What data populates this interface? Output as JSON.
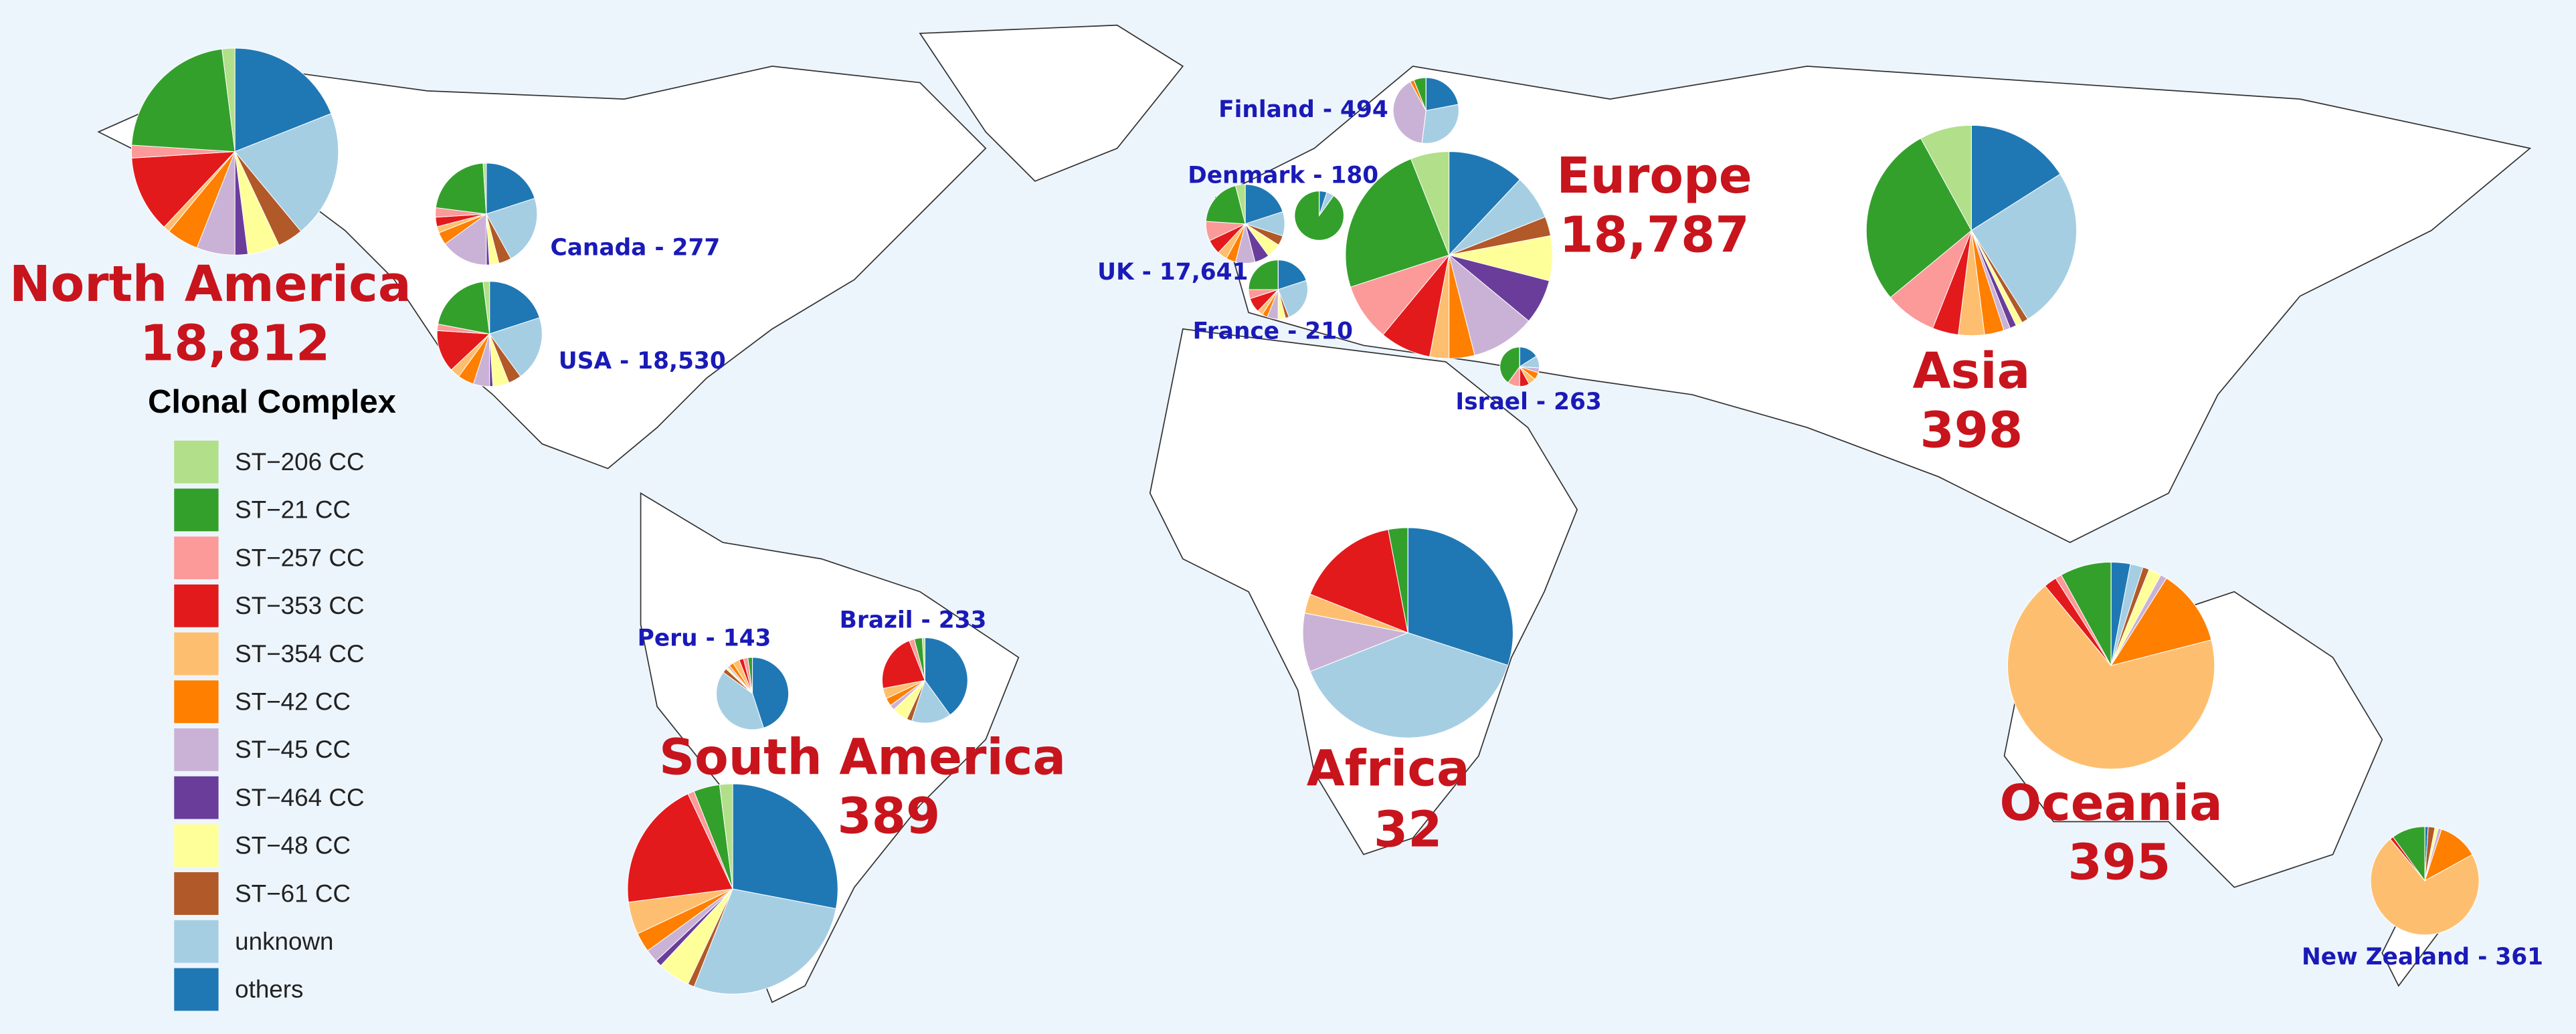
{
  "legend": {
    "title": "Clonal Complex",
    "items": [
      {
        "name": "ST−206 CC",
        "color": "#b2df8a"
      },
      {
        "name": "ST−21 CC",
        "color": "#33a02c"
      },
      {
        "name": "ST−257 CC",
        "color": "#fb9a99"
      },
      {
        "name": "ST−353 CC",
        "color": "#e31a1c"
      },
      {
        "name": "ST−354 CC",
        "color": "#fdbf6f"
      },
      {
        "name": "ST−42 CC",
        "color": "#ff7f00"
      },
      {
        "name": "ST−45 CC",
        "color": "#cab2d6"
      },
      {
        "name": "ST−464 CC",
        "color": "#6a3d9a"
      },
      {
        "name": "ST−48 CC",
        "color": "#ffff99"
      },
      {
        "name": "ST−61 CC",
        "color": "#b15928"
      },
      {
        "name": "unknown",
        "color": "#a6cee3"
      },
      {
        "name": "others",
        "color": "#1f78b4"
      }
    ]
  },
  "regions": [
    {
      "name": "North America",
      "count": {
        "value": 18812,
        "label": "18,812"
      },
      "slices": [
        2,
        22,
        2,
        12,
        1,
        5,
        6,
        2,
        5,
        4,
        20,
        19
      ]
    },
    {
      "name": "Europe",
      "count": {
        "value": 18787,
        "label": "18,787"
      },
      "slices": [
        6,
        24,
        9,
        8,
        3,
        4,
        10,
        7,
        7,
        3,
        7,
        12
      ]
    },
    {
      "name": "Asia",
      "count": 398,
      "slices": [
        8,
        28,
        8,
        4,
        4,
        3,
        1,
        1,
        1,
        1,
        25,
        16
      ]
    },
    {
      "name": "South America",
      "count": 389,
      "slices": [
        2,
        4,
        1,
        20,
        5,
        3,
        2,
        1,
        5,
        1,
        28,
        28
      ]
    },
    {
      "name": "Africa",
      "count": 32,
      "slices": [
        0,
        3,
        0,
        16,
        3,
        0,
        9,
        0,
        0,
        0,
        39,
        30
      ]
    },
    {
      "name": "Oceania",
      "count": 395,
      "slices": [
        0,
        8,
        1,
        2,
        68,
        12,
        1,
        0,
        2,
        1,
        2,
        3
      ]
    }
  ],
  "countries": [
    {
      "label": "Canada - 277",
      "slices": [
        1,
        22,
        3,
        3,
        2,
        4,
        15,
        1,
        3,
        4,
        22,
        20
      ]
    },
    {
      "label": "USA - 18,530",
      "slices": [
        2,
        20,
        2,
        13,
        3,
        5,
        5,
        1,
        5,
        4,
        20,
        20
      ]
    },
    {
      "label": "Finland - 494",
      "slices": [
        0,
        6,
        0,
        0,
        0,
        2,
        40,
        0,
        0,
        0,
        30,
        22
      ]
    },
    {
      "label": "Denmark - 180",
      "slices": [
        0,
        90,
        0,
        0,
        0,
        0,
        0,
        0,
        0,
        0,
        5,
        5
      ]
    },
    {
      "label": "UK - 17,641",
      "slices": [
        4,
        20,
        8,
        6,
        4,
        4,
        8,
        6,
        6,
        4,
        10,
        20
      ]
    },
    {
      "label": "France - 210",
      "slices": [
        0,
        25,
        5,
        8,
        3,
        3,
        6,
        0,
        4,
        2,
        24,
        20
      ]
    },
    {
      "label": "Israel - 263",
      "slices": [
        0,
        40,
        10,
        8,
        6,
        6,
        4,
        0,
        0,
        0,
        10,
        16
      ]
    },
    {
      "label": "Peru - 143",
      "slices": [
        0,
        2,
        2,
        2,
        3,
        2,
        1,
        0,
        1,
        2,
        40,
        45
      ]
    },
    {
      "label": "Brazil - 233",
      "slices": [
        1,
        3,
        2,
        22,
        4,
        3,
        2,
        0,
        6,
        2,
        15,
        40
      ]
    },
    {
      "label": "New Zealand - 361",
      "slices": [
        0,
        10,
        0,
        1,
        72,
        12,
        1,
        0,
        1,
        2,
        0,
        1
      ]
    }
  ]
}
